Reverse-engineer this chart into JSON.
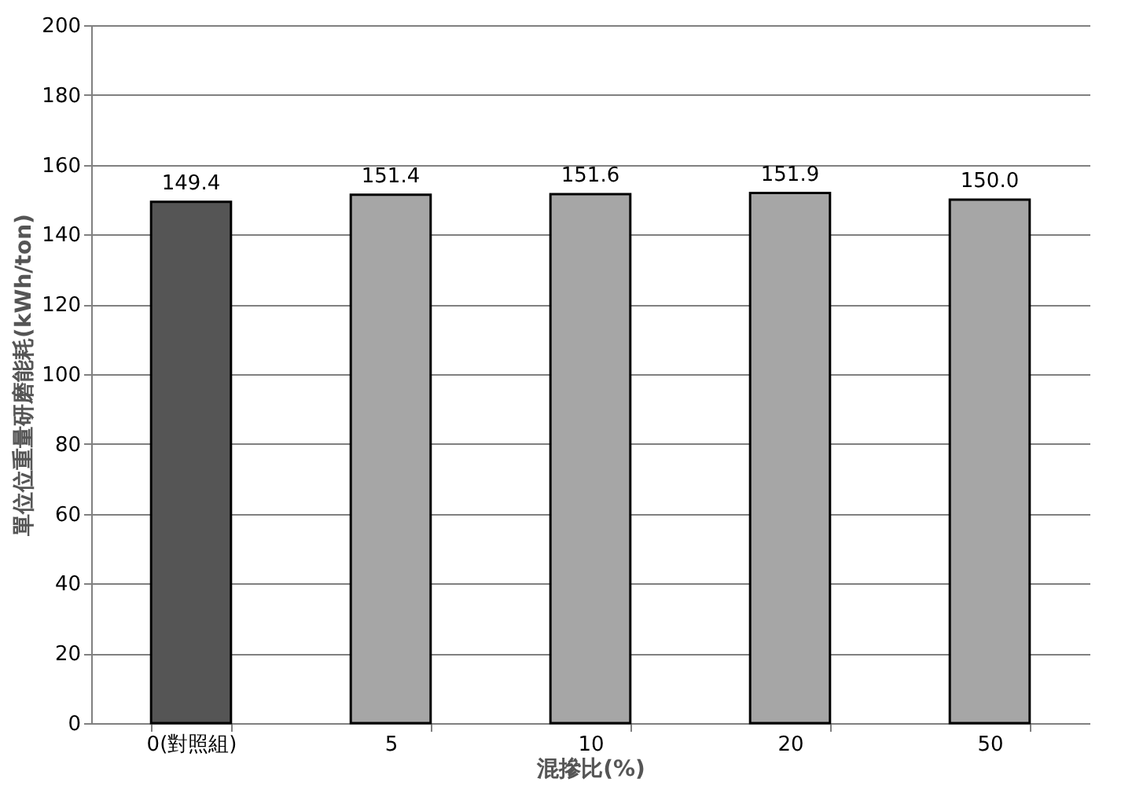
{
  "chart_data": {
    "type": "bar",
    "categories": [
      "0(對照組)",
      "5",
      "10",
      "20",
      "50"
    ],
    "values": [
      149.4,
      151.4,
      151.6,
      151.9,
      150.0
    ],
    "value_labels": [
      "149.4",
      "151.4",
      "151.6",
      "151.9",
      "150.0"
    ],
    "colors": [
      "#555555",
      "#a6a6a6",
      "#a6a6a6",
      "#a6a6a6",
      "#a6a6a6"
    ],
    "xlabel": "混摻比(%)",
    "ylabel": "單位位重量研磨能耗(kWh/ton)",
    "ylim": [
      0,
      200
    ],
    "yticks": [
      0,
      20,
      40,
      60,
      80,
      100,
      120,
      140,
      160,
      180,
      200
    ],
    "grid": "y"
  }
}
